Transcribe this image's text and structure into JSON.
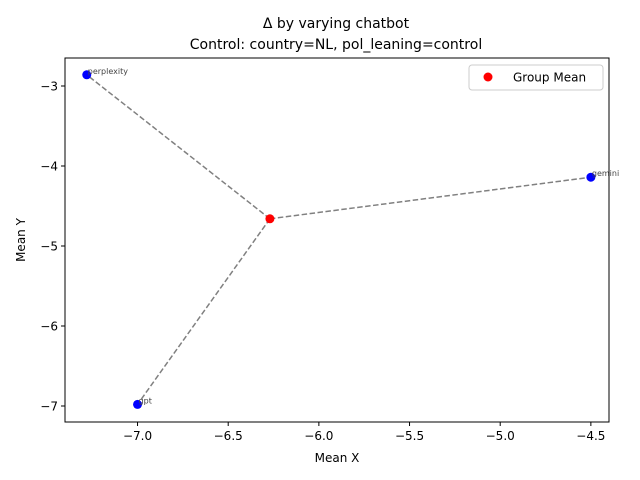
{
  "chart_data": {
    "type": "scatter",
    "title": "Δ by varying chatbot",
    "subtitle": "Control: country=NL, pol_leaning=control",
    "xlabel": "Mean X",
    "ylabel": "Mean Y",
    "xlim": [
      -7.4,
      -4.4
    ],
    "ylim": [
      -7.2,
      -2.65
    ],
    "xticks": [
      -7.0,
      -6.5,
      -6.0,
      -5.5,
      -5.0,
      -4.5
    ],
    "xtick_labels": [
      "−7.0",
      "−6.5",
      "−6.0",
      "−5.5",
      "−5.0",
      "−4.5"
    ],
    "yticks": [
      -7,
      -6,
      -5,
      -4,
      -3
    ],
    "ytick_labels": [
      "−7",
      "−6",
      "−5",
      "−4",
      "−3"
    ],
    "grid": false,
    "legend": {
      "placement": "top-right",
      "entries": [
        "Group Mean"
      ]
    },
    "group_mean": {
      "name": "Group Mean",
      "x": -6.27,
      "y": -4.66,
      "color": "#ff0000"
    },
    "points": [
      {
        "label": "perplexity",
        "x": -7.28,
        "y": -2.86
      },
      {
        "label": "gemini",
        "x": -4.5,
        "y": -4.14
      },
      {
        "label": "gpt",
        "x": -7.0,
        "y": -6.98
      }
    ],
    "point_color": "#0000ff",
    "line_color": "#808080"
  }
}
